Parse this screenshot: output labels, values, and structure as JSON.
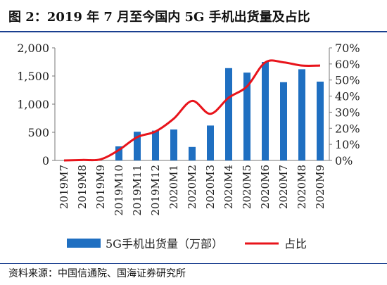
{
  "header": {
    "title": "图 2：2019 年 7 月至今国内 5G 手机出货量及占比"
  },
  "source": {
    "text": "资料来源：中国信通院、国海证券研究所"
  },
  "colors": {
    "bar": "#1f6fc1",
    "line": "#e8141b",
    "rule": "#1a3f8f"
  },
  "chart_data": {
    "type": "bar+line",
    "categories": [
      "2019M7",
      "2019M8",
      "2019M9",
      "2019M10",
      "2019M11",
      "2019M12",
      "2020M1",
      "2020M2",
      "2020M3",
      "2020M4",
      "2020M5",
      "2020M6",
      "2020M7",
      "2020M8",
      "2020M9"
    ],
    "series": [
      {
        "name": "5G手机出货量（万部）",
        "type": "bar",
        "axis": "left",
        "values": [
          0,
          0,
          0,
          250,
          510,
          530,
          550,
          240,
          620,
          1640,
          1560,
          1750,
          1390,
          1620,
          1400
        ]
      },
      {
        "name": "占比",
        "type": "line",
        "axis": "right",
        "values": [
          0,
          0.3,
          0.7,
          6.5,
          14.5,
          18,
          26,
          37,
          29,
          39,
          46,
          61,
          61,
          59,
          59
        ]
      }
    ],
    "y_left": {
      "ylim": [
        0,
        2000
      ],
      "ticks": [
        "0",
        "500",
        "1,000",
        "1,500",
        "2,000"
      ]
    },
    "y_right": {
      "ylim": [
        0,
        70
      ],
      "ticks": [
        "0%",
        "10%",
        "20%",
        "30%",
        "40%",
        "50%",
        "60%",
        "70%"
      ]
    },
    "grid": false,
    "legend_position": "bottom"
  }
}
